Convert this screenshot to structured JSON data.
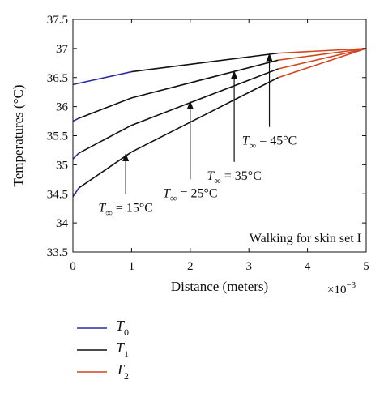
{
  "chart_data": {
    "type": "line",
    "xlabel": "Distance (meters)",
    "ylabel": "Temperatures (°C)",
    "x_exponent": {
      "base": "×10",
      "power": "−3"
    },
    "xlim": [
      0,
      5
    ],
    "ylim": [
      33.5,
      37.5
    ],
    "x_ticks": [
      0,
      1,
      2,
      3,
      4,
      5
    ],
    "y_ticks": [
      33.5,
      34,
      34.5,
      35,
      35.5,
      36,
      36.5,
      37,
      37.5
    ],
    "x_tick_labels": [
      "0",
      "1",
      "2",
      "3",
      "4",
      "5"
    ],
    "y_tick_labels": [
      "33.5",
      "34",
      "34.5",
      "35",
      "35.5",
      "36",
      "36.5",
      "37",
      "37.5"
    ],
    "grid": false,
    "in_plot_text": "Walking for skin set I",
    "colors": {
      "T0": "#2a2aa8",
      "T1": "#111111",
      "T2": "#d2451e"
    },
    "series": [
      {
        "condition": "T∞ = 15°C",
        "T0": [
          [
            0,
            34.45
          ],
          [
            0.1,
            34.6
          ]
        ],
        "T1": [
          [
            0.1,
            34.6
          ],
          [
            1.0,
            35.22
          ],
          [
            3.5,
            36.5
          ]
        ],
        "T2": [
          [
            3.5,
            36.5
          ],
          [
            5.0,
            37.0
          ]
        ]
      },
      {
        "condition": "T∞ = 25°C",
        "T0": [
          [
            0,
            35.1
          ],
          [
            0.1,
            35.2
          ]
        ],
        "T1": [
          [
            0.1,
            35.2
          ],
          [
            1.0,
            35.68
          ],
          [
            3.5,
            36.65
          ]
        ],
        "T2": [
          [
            3.5,
            36.65
          ],
          [
            5.0,
            37.0
          ]
        ]
      },
      {
        "condition": "T∞ = 35°C",
        "T0": [
          [
            0,
            35.75
          ],
          [
            0.1,
            35.8
          ]
        ],
        "T1": [
          [
            0.1,
            35.8
          ],
          [
            1.0,
            36.15
          ],
          [
            3.5,
            36.8
          ]
        ],
        "T2": [
          [
            3.5,
            36.8
          ],
          [
            5.0,
            37.0
          ]
        ]
      },
      {
        "condition": "T∞ = 45°C",
        "T0": [
          [
            0,
            36.38
          ],
          [
            1.0,
            36.6
          ]
        ],
        "T1": [
          [
            1.0,
            36.6
          ],
          [
            3.5,
            36.92
          ]
        ],
        "T2": [
          [
            3.5,
            36.92
          ],
          [
            5.0,
            37.0
          ]
        ]
      }
    ],
    "annotations": [
      {
        "base": "T",
        "sub": "∞",
        "rest": " = 15°C",
        "arrow_tip": [
          0.9,
          35.2
        ],
        "arrow_tail": [
          0.9,
          34.5
        ]
      },
      {
        "base": "T",
        "sub": "∞",
        "rest": " = 25°C",
        "arrow_tip": [
          2.0,
          36.1
        ],
        "arrow_tail": [
          2.0,
          34.75
        ]
      },
      {
        "base": "T",
        "sub": "∞",
        "rest": " = 35°C",
        "arrow_tip": [
          2.75,
          36.62
        ],
        "arrow_tail": [
          2.75,
          35.05
        ]
      },
      {
        "base": "T",
        "sub": "∞",
        "rest": " = 45°C",
        "arrow_tip": [
          3.35,
          36.92
        ],
        "arrow_tail": [
          3.35,
          35.65
        ]
      }
    ],
    "legend": {
      "placement": "below",
      "entries": [
        {
          "key": "T0",
          "base": "T",
          "sub": "0"
        },
        {
          "key": "T1",
          "base": "T",
          "sub": "1"
        },
        {
          "key": "T2",
          "base": "T",
          "sub": "2"
        }
      ]
    }
  }
}
